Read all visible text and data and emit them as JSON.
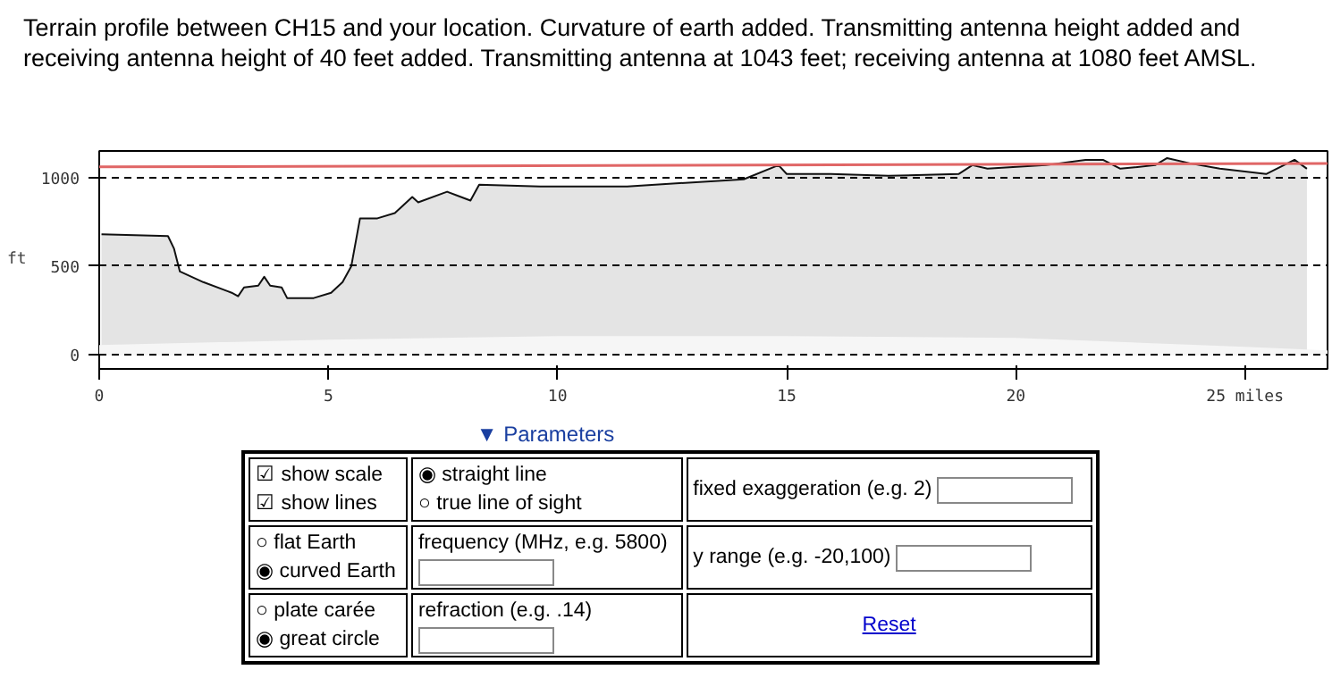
{
  "chart_data": {
    "type": "area",
    "title": "Terrain profile between CH15 and your location. Curvature of earth added. Transmitting antenna height added and receiving antenna height of 40 feet added. Transmitting antenna at 1043 feet; receiving antenna at 1080 feet AMSL.",
    "ylabel": "ft",
    "xlim": [
      0,
      26.8
    ],
    "ylim": [
      -80,
      1150
    ],
    "xticks": [
      0,
      5,
      10,
      15,
      20,
      {
        "value": 25,
        "label": "25 miles"
      }
    ],
    "yticks": [
      0,
      500,
      1000
    ],
    "grid": "y",
    "marker": "none",
    "series": [
      {
        "color": "#e4e4e4",
        "x": [
          0.05,
          1.5,
          1.63,
          1.76,
          2.27,
          2.89,
          3.03,
          3.16,
          3.47,
          3.6,
          3.73,
          3.98,
          4.1,
          4.68,
          5.06,
          5.31,
          5.5,
          5.69,
          6.07,
          6.45,
          6.83,
          6.96,
          7.59,
          8.1,
          8.29,
          9.62,
          11.52,
          12.78,
          14.06,
          14.82,
          15.0,
          15.96,
          17.22,
          18.75,
          19.05,
          19.38,
          20.65,
          21.52,
          21.9,
          22.28,
          23.04,
          23.3,
          23.8,
          24.45,
          25.46,
          26.08,
          26.35
        ],
        "values": [
          680,
          670,
          600,
          470,
          410,
          350,
          330,
          380,
          390,
          440,
          390,
          380,
          320,
          320,
          350,
          410,
          500,
          770,
          770,
          800,
          890,
          860,
          920,
          870,
          960,
          950,
          950,
          970,
          990,
          1070,
          1020,
          1020,
          1010,
          1020,
          1070,
          1050,
          1070,
          1100,
          1100,
          1050,
          1070,
          1110,
          1080,
          1050,
          1020,
          1100,
          1050
        ]
      },
      {
        "color": "#f6f6f6",
        "x": [
          0,
          5,
          10,
          15,
          20,
          25,
          26.8
        ],
        "values": [
          50,
          80,
          100,
          100,
          90,
          40,
          20
        ]
      },
      {
        "type": "line",
        "color": "#e06666",
        "x": [
          0,
          26.8
        ],
        "values": [
          1060,
          1080
        ]
      }
    ],
    "annotations": [
      "▼ Parameters",
      "☑ show scale",
      "☑ show lines",
      "◉ straight line",
      "○ true line of sight",
      "fixed exaggeration (e.g. 2)",
      "○ flat Earth",
      "◉ curved Earth",
      "frequency (MHz, e.g. 5800)",
      "y range (e.g. -20,100)",
      "○ plate carée",
      "◉ great circle",
      "refraction (e.g. .14)",
      "Reset"
    ]
  }
}
